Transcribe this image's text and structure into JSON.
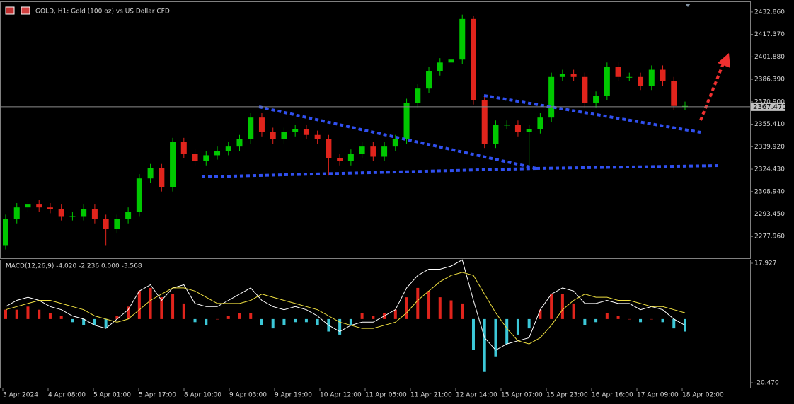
{
  "chart_data": [
    {
      "type": "candlestick",
      "title": "GOLD, H1:  Gold (100 oz) vs US Dollar CFD",
      "ylim": [
        2262.95,
        2439.64
      ],
      "yticks": [
        {
          "value": 2432.86,
          "label": "2432.860"
        },
        {
          "value": 2417.37,
          "label": "2417.370"
        },
        {
          "value": 2401.88,
          "label": "2401.880"
        },
        {
          "value": 2386.39,
          "label": "2386.390"
        },
        {
          "value": 2370.9,
          "label": "2370.900"
        },
        {
          "value": 2355.41,
          "label": "2355.410"
        },
        {
          "value": 2339.92,
          "label": "2339.920"
        },
        {
          "value": 2324.43,
          "label": "2324.430"
        },
        {
          "value": 2308.94,
          "label": "2308.940"
        },
        {
          "value": 2293.45,
          "label": "2293.450"
        },
        {
          "value": 2277.96,
          "label": "2277.960"
        }
      ],
      "current_price": {
        "value": 2367.47,
        "label": "2367.470"
      },
      "up_color": "#00c800",
      "down_color": "#e0241c",
      "open": [
        2272,
        2290,
        2298,
        2300,
        2298,
        2297,
        2292,
        2292,
        2297,
        2290,
        2283,
        2290,
        2295,
        2318,
        2325,
        2312,
        2343,
        2335,
        2330,
        2334,
        2337,
        2340,
        2345,
        2360,
        2350,
        2345,
        2350,
        2352,
        2348,
        2345,
        2332,
        2330,
        2335,
        2340,
        2333,
        2340,
        2345,
        2370,
        2380,
        2392,
        2398,
        2400,
        2428,
        2372,
        2342,
        2355,
        2355,
        2350,
        2352,
        2360,
        2388,
        2390,
        2388,
        2370,
        2375,
        2395,
        2388,
        2388,
        2382,
        2393,
        2385,
        2368
      ],
      "high": [
        2293,
        2301,
        2303,
        2303,
        2301,
        2300,
        2295,
        2300,
        2300,
        2293,
        2293,
        2298,
        2321,
        2328,
        2328,
        2346,
        2346,
        2338,
        2337,
        2340,
        2343,
        2348,
        2363,
        2363,
        2353,
        2353,
        2355,
        2355,
        2351,
        2348,
        2335,
        2338,
        2343,
        2343,
        2343,
        2348,
        2373,
        2383,
        2395,
        2401,
        2403,
        2431,
        2430,
        2375,
        2358,
        2358,
        2358,
        2355,
        2363,
        2391,
        2393,
        2393,
        2391,
        2378,
        2398,
        2398,
        2391,
        2391,
        2396,
        2396,
        2388,
        2371
      ],
      "low": [
        2269,
        2287,
        2295,
        2295,
        2294,
        2289,
        2289,
        2289,
        2287,
        2272,
        2280,
        2287,
        2292,
        2315,
        2309,
        2309,
        2332,
        2327,
        2327,
        2331,
        2334,
        2337,
        2342,
        2347,
        2342,
        2342,
        2347,
        2345,
        2342,
        2320,
        2327,
        2327,
        2332,
        2330,
        2330,
        2337,
        2342,
        2367,
        2377,
        2389,
        2395,
        2397,
        2369,
        2339,
        2339,
        2352,
        2347,
        2327,
        2349,
        2357,
        2385,
        2385,
        2367,
        2367,
        2372,
        2385,
        2385,
        2379,
        2379,
        2382,
        2365,
        2365
      ],
      "close": [
        2290,
        2298,
        2300,
        2298,
        2297,
        2292,
        2292,
        2297,
        2290,
        2283,
        2290,
        2295,
        2318,
        2325,
        2312,
        2343,
        2335,
        2330,
        2334,
        2337,
        2340,
        2345,
        2360,
        2350,
        2345,
        2350,
        2352,
        2348,
        2345,
        2332,
        2330,
        2335,
        2340,
        2333,
        2340,
        2345,
        2370,
        2380,
        2392,
        2398,
        2400,
        2428,
        2372,
        2342,
        2355,
        2355,
        2350,
        2352,
        2360,
        2388,
        2390,
        2388,
        2370,
        2375,
        2395,
        2388,
        2388,
        2382,
        2393,
        2385,
        2368,
        2368
      ]
    },
    {
      "type": "macd",
      "title": "MACD(12,26,9) -4.020 -2.236 0.000 -3.568",
      "ylim": [
        -22.06,
        18.84
      ],
      "yticks": [
        17.927,
        {
          "value": -20.47,
          "label": "-20.470"
        }
      ],
      "up_color": "#e0241c",
      "down_color": "#3cc8d8",
      "histogram": [
        3,
        3,
        4,
        3,
        2,
        1,
        -1,
        -2,
        -2,
        -3,
        1,
        4,
        9,
        10,
        7,
        8,
        5,
        -1,
        -2,
        0,
        1,
        2,
        2,
        -2,
        -3,
        -2,
        -1,
        -1,
        -2,
        -4,
        -5,
        -2,
        2,
        1,
        2,
        3,
        7,
        10,
        9,
        7,
        6,
        5,
        -10,
        -17,
        -12,
        -8,
        -5,
        -3,
        3,
        8,
        8,
        5,
        -2,
        -1,
        2,
        1,
        0,
        -1,
        0,
        -1,
        -3,
        -4
      ],
      "series": [
        {
          "color": "#ffffff",
          "values": [
            4,
            6,
            7,
            6,
            4,
            3,
            1,
            0,
            -2,
            -3,
            0,
            3,
            9,
            11,
            6,
            10,
            11,
            5,
            4,
            4,
            6,
            8,
            10,
            6,
            4,
            3,
            4,
            3,
            1,
            -2,
            -4,
            -2,
            -1,
            -1,
            1,
            3,
            10,
            14,
            16,
            16,
            17,
            19,
            6,
            -6,
            -10,
            -8,
            -7,
            -6,
            3,
            8,
            10,
            9,
            5,
            5,
            6,
            5,
            5,
            3,
            4,
            3,
            0,
            -2
          ]
        },
        {
          "color": "#f0e040",
          "values": [
            3,
            4,
            5,
            6,
            6,
            5,
            4,
            3,
            1,
            0,
            -1,
            0,
            3,
            6,
            8,
            10,
            10,
            9,
            7,
            5,
            5,
            5,
            6,
            8,
            7,
            6,
            5,
            4,
            3,
            1,
            -1,
            -2,
            -3,
            -3,
            -2,
            -1,
            2,
            6,
            9,
            12,
            14,
            15,
            14,
            8,
            2,
            -3,
            -7,
            -8,
            -6,
            -2,
            3,
            6,
            8,
            7,
            7,
            6,
            6,
            5,
            4,
            4,
            3,
            2
          ]
        }
      ],
      "xticks": [
        "3 Apr 2024",
        "4 Apr 08:00",
        "5 Apr 01:00",
        "5 Apr 17:00",
        "8 Apr 10:00",
        "9 Apr 03:00",
        "9 Apr 19:00",
        "10 Apr 12:00",
        "11 Apr 05:00",
        "11 Apr 21:00",
        "12 Apr 14:00",
        "15 Apr 07:00",
        "15 Apr 23:00",
        "16 Apr 16:00",
        "17 Apr 09:00",
        "18 Apr 02:00"
      ]
    }
  ]
}
